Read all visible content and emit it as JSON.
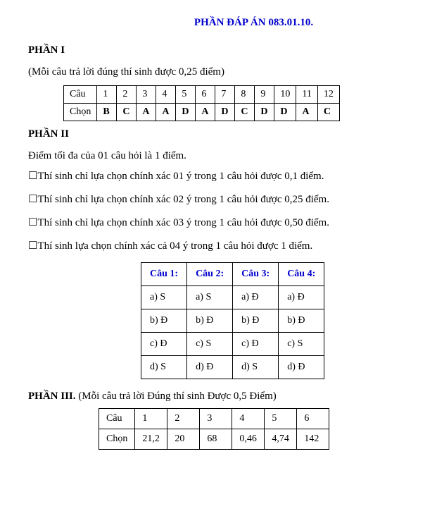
{
  "title": "PHẦN ĐÁP ÁN 083.01.10.",
  "section1": {
    "heading": "PHẦN I",
    "intro_pre": "(Mỗi câu trả lời đúng thí sinh được ",
    "intro_score": "0,25",
    "intro_post": " điểm)",
    "row_labels": [
      "Câu",
      "Chọn"
    ],
    "cols": [
      "1",
      "2",
      "3",
      "4",
      "5",
      "6",
      "7",
      "8",
      "9",
      "10",
      "11",
      "12"
    ],
    "answers": [
      "B",
      "C",
      "A",
      "A",
      "D",
      "A",
      "D",
      "C",
      "D",
      "D",
      "A",
      "C"
    ]
  },
  "section2": {
    "heading": "PHẦN II",
    "max_line": "Điểm tối đa của 01 câu hỏi là 1 điểm.",
    "rules": [
      {
        "pre": "Thí sinh chỉ lựa chọn chính xác 01 ý trong 1 câu hỏi được ",
        "score": "0,1",
        "post": " điểm."
      },
      {
        "pre": "Thí sinh chỉ lựa chọn chính xác 02 ý trong 1 câu hỏi được ",
        "score": "0,25",
        "post": " điểm."
      },
      {
        "pre": "Thí sinh chỉ lựa chọn chính xác 03 ý trong 1 câu hỏi được ",
        "score": "0,50",
        "post": " điểm."
      },
      {
        "pre": "Thí sinh lựa chọn chính xác cả 04 ý trong 1 câu hỏi được 1 điểm.",
        "score": "",
        "post": ""
      }
    ],
    "headers": [
      "Câu 1:",
      "Câu 2:",
      "Câu 3:",
      "Câu 4:"
    ],
    "rows": [
      [
        "a) S",
        "a) S",
        "a) Đ",
        "a) Đ"
      ],
      [
        "b) Đ",
        "b) Đ",
        "b) Đ",
        "b) Đ"
      ],
      [
        "c) Đ",
        "c) S",
        "c) Đ",
        "c) S"
      ],
      [
        "d) S",
        "d) Đ",
        "d) S",
        "d) Đ"
      ]
    ]
  },
  "section3": {
    "heading_pre": "PHẦN III.",
    "heading_post_pre": " (Mỗi câu trả lời Đúng thí sinh Được ",
    "heading_score": "0,5",
    "heading_post_post": " Điểm)",
    "row_labels": [
      "Câu",
      "Chọn"
    ],
    "cols": [
      "1",
      "2",
      "3",
      "4",
      "5",
      "6"
    ],
    "answers": [
      "21,2",
      "20",
      "68",
      "0,46",
      "4,74",
      "142"
    ]
  }
}
